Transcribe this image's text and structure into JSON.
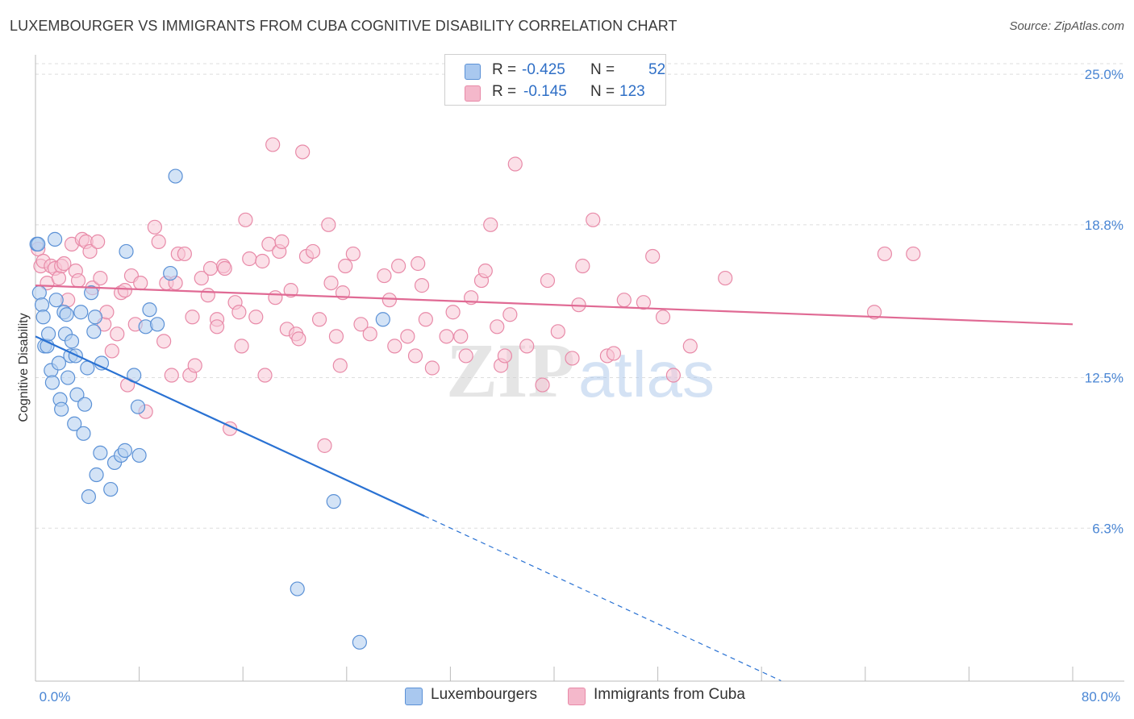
{
  "header": {
    "title": "LUXEMBOURGER VS IMMIGRANTS FROM CUBA COGNITIVE DISABILITY CORRELATION CHART",
    "source": "Source: ZipAtlas.com"
  },
  "watermark": {
    "zip": "ZIP",
    "atlas": "atlas"
  },
  "legend": {
    "rows": [
      {
        "r_label": "R =",
        "r_value": "-0.425",
        "n_label": "N =",
        "n_value": "52",
        "color": "#a9c8ef"
      },
      {
        "r_label": "R =",
        "r_value": "-0.145",
        "n_label": "N =",
        "n_value": "123",
        "color": "#f4b8cb"
      }
    ]
  },
  "bottom_legend": {
    "series1": "Luxembourgers",
    "series2": "Immigrants from Cuba"
  },
  "colors": {
    "blue_fill": "#b5d0f0",
    "blue_stroke": "#5b91d6",
    "blue_line": "#2a72d3",
    "pink_fill": "#f8c6d5",
    "pink_stroke": "#e88aa8",
    "pink_line": "#e06a94",
    "grid": "#dddddd",
    "tick_text": "#4a86d4"
  },
  "chart_data": {
    "type": "scatter",
    "title": "LUXEMBOURGER VS IMMIGRANTS FROM CUBA COGNITIVE DISABILITY CORRELATION CHART",
    "xlabel": "",
    "ylabel": "Cognitive Disability",
    "xlim": [
      0,
      80
    ],
    "ylim": [
      0,
      25.8
    ],
    "x_tick_labels": [
      {
        "value": 0,
        "label": "0.0%"
      },
      {
        "value": 80,
        "label": "80.0%"
      }
    ],
    "y_tick_labels": [
      {
        "value": 25.0,
        "label": "25.0%"
      },
      {
        "value": 18.8,
        "label": "18.8%"
      },
      {
        "value": 12.5,
        "label": "12.5%"
      },
      {
        "value": 6.3,
        "label": "6.3%"
      }
    ],
    "series": [
      {
        "name": "Luxembourgers",
        "R": -0.425,
        "N": 52,
        "trend": {
          "x0": 0,
          "y0": 14.2,
          "x1": 30,
          "y1": 6.8,
          "dash_to_x": 57.5
        },
        "points": [
          [
            0.1,
            18.0
          ],
          [
            0.2,
            18.0
          ],
          [
            0.3,
            16.0
          ],
          [
            0.5,
            15.5
          ],
          [
            0.6,
            15.0
          ],
          [
            0.7,
            13.8
          ],
          [
            0.9,
            13.8
          ],
          [
            1.0,
            14.3
          ],
          [
            1.2,
            12.8
          ],
          [
            1.3,
            12.3
          ],
          [
            1.5,
            18.2
          ],
          [
            1.6,
            15.7
          ],
          [
            1.8,
            13.1
          ],
          [
            1.9,
            11.6
          ],
          [
            2.0,
            11.2
          ],
          [
            2.2,
            15.2
          ],
          [
            2.3,
            14.3
          ],
          [
            2.4,
            15.1
          ],
          [
            2.5,
            12.5
          ],
          [
            2.7,
            13.4
          ],
          [
            2.8,
            14.0
          ],
          [
            3.0,
            10.6
          ],
          [
            3.1,
            13.4
          ],
          [
            3.2,
            11.8
          ],
          [
            3.5,
            15.2
          ],
          [
            3.7,
            10.2
          ],
          [
            3.8,
            11.4
          ],
          [
            4.0,
            12.9
          ],
          [
            4.1,
            7.6
          ],
          [
            4.3,
            16.0
          ],
          [
            4.5,
            14.4
          ],
          [
            4.6,
            15.0
          ],
          [
            4.7,
            8.5
          ],
          [
            5.0,
            9.4
          ],
          [
            5.1,
            13.1
          ],
          [
            5.8,
            7.9
          ],
          [
            6.1,
            9.0
          ],
          [
            6.6,
            9.3
          ],
          [
            6.9,
            9.5
          ],
          [
            7.0,
            17.7
          ],
          [
            7.6,
            12.6
          ],
          [
            7.9,
            11.3
          ],
          [
            8.0,
            9.3
          ],
          [
            8.5,
            14.6
          ],
          [
            8.8,
            15.3
          ],
          [
            9.4,
            14.7
          ],
          [
            10.4,
            16.8
          ],
          [
            10.8,
            20.8
          ],
          [
            20.2,
            3.8
          ],
          [
            23.0,
            7.4
          ],
          [
            25.0,
            1.6
          ],
          [
            26.8,
            14.9
          ]
        ]
      },
      {
        "name": "Immigrants from Cuba",
        "R": -0.145,
        "N": 123,
        "trend": {
          "x0": 0,
          "y0": 16.3,
          "x1": 80,
          "y1": 14.7
        },
        "points": [
          [
            0.2,
            17.8
          ],
          [
            0.4,
            17.1
          ],
          [
            0.6,
            17.3
          ],
          [
            0.9,
            16.4
          ],
          [
            1.2,
            17.1
          ],
          [
            1.5,
            17.0
          ],
          [
            1.8,
            16.6
          ],
          [
            2.0,
            17.1
          ],
          [
            2.2,
            17.2
          ],
          [
            2.5,
            15.7
          ],
          [
            2.8,
            18.0
          ],
          [
            3.1,
            16.9
          ],
          [
            3.3,
            16.5
          ],
          [
            3.6,
            18.2
          ],
          [
            3.9,
            18.1
          ],
          [
            4.2,
            17.7
          ],
          [
            4.4,
            16.2
          ],
          [
            4.8,
            18.1
          ],
          [
            5.0,
            16.6
          ],
          [
            5.3,
            14.7
          ],
          [
            5.5,
            15.2
          ],
          [
            5.9,
            13.6
          ],
          [
            6.3,
            14.3
          ],
          [
            6.6,
            16.0
          ],
          [
            6.9,
            16.1
          ],
          [
            7.1,
            12.2
          ],
          [
            7.4,
            16.7
          ],
          [
            7.7,
            14.7
          ],
          [
            8.1,
            16.4
          ],
          [
            8.5,
            11.1
          ],
          [
            9.2,
            18.7
          ],
          [
            9.5,
            18.1
          ],
          [
            9.9,
            14.0
          ],
          [
            10.1,
            16.4
          ],
          [
            10.5,
            12.6
          ],
          [
            10.8,
            16.4
          ],
          [
            11.0,
            17.6
          ],
          [
            11.5,
            17.6
          ],
          [
            11.9,
            12.6
          ],
          [
            12.3,
            13.0
          ],
          [
            12.1,
            15.0
          ],
          [
            12.8,
            16.6
          ],
          [
            13.3,
            15.9
          ],
          [
            13.5,
            17.0
          ],
          [
            14.0,
            14.9
          ],
          [
            14.0,
            14.6
          ],
          [
            14.5,
            17.1
          ],
          [
            15.0,
            10.4
          ],
          [
            15.4,
            15.6
          ],
          [
            15.7,
            15.2
          ],
          [
            15.9,
            13.8
          ],
          [
            16.2,
            19.0
          ],
          [
            16.5,
            17.4
          ],
          [
            17.0,
            15.0
          ],
          [
            17.5,
            17.3
          ],
          [
            17.7,
            12.6
          ],
          [
            18.0,
            18.0
          ],
          [
            18.3,
            22.1
          ],
          [
            18.5,
            15.8
          ],
          [
            18.8,
            17.7
          ],
          [
            19.0,
            18.1
          ],
          [
            19.4,
            14.5
          ],
          [
            19.7,
            16.1
          ],
          [
            20.1,
            14.3
          ],
          [
            20.3,
            14.1
          ],
          [
            20.6,
            21.8
          ],
          [
            20.9,
            17.5
          ],
          [
            21.4,
            17.7
          ],
          [
            21.9,
            14.9
          ],
          [
            22.3,
            9.7
          ],
          [
            22.6,
            18.8
          ],
          [
            22.8,
            16.4
          ],
          [
            23.2,
            14.2
          ],
          [
            23.5,
            13.0
          ],
          [
            23.7,
            16.0
          ],
          [
            23.9,
            17.1
          ],
          [
            24.5,
            17.6
          ],
          [
            25.1,
            14.7
          ],
          [
            25.8,
            14.3
          ],
          [
            26.9,
            16.7
          ],
          [
            27.3,
            15.7
          ],
          [
            27.7,
            13.8
          ],
          [
            28.0,
            17.1
          ],
          [
            28.7,
            14.2
          ],
          [
            29.3,
            13.4
          ],
          [
            29.5,
            17.2
          ],
          [
            29.8,
            16.3
          ],
          [
            30.1,
            14.9
          ],
          [
            30.6,
            12.9
          ],
          [
            31.7,
            14.2
          ],
          [
            32.2,
            15.2
          ],
          [
            32.8,
            14.2
          ],
          [
            33.2,
            13.4
          ],
          [
            33.6,
            15.8
          ],
          [
            34.4,
            16.5
          ],
          [
            34.7,
            16.9
          ],
          [
            35.1,
            18.8
          ],
          [
            35.6,
            14.6
          ],
          [
            35.9,
            13.0
          ],
          [
            36.2,
            13.4
          ],
          [
            36.6,
            15.1
          ],
          [
            37.0,
            21.3
          ],
          [
            37.9,
            13.8
          ],
          [
            39.1,
            12.2
          ],
          [
            39.5,
            16.5
          ],
          [
            40.3,
            14.4
          ],
          [
            41.4,
            13.3
          ],
          [
            41.9,
            15.5
          ],
          [
            42.2,
            17.1
          ],
          [
            43.0,
            19.0
          ],
          [
            44.1,
            13.4
          ],
          [
            44.6,
            13.5
          ],
          [
            45.4,
            15.7
          ],
          [
            46.9,
            15.6
          ],
          [
            47.6,
            17.5
          ],
          [
            48.4,
            15.0
          ],
          [
            49.2,
            12.6
          ],
          [
            50.5,
            13.8
          ],
          [
            53.2,
            16.6
          ],
          [
            64.7,
            15.2
          ],
          [
            65.5,
            17.6
          ],
          [
            67.7,
            17.6
          ],
          [
            14.6,
            17.0
          ]
        ]
      }
    ]
  }
}
